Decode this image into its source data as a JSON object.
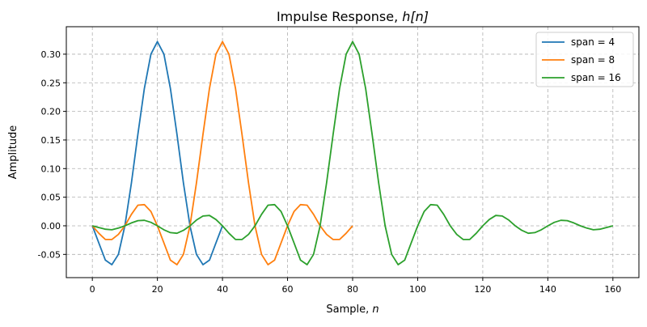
{
  "chart_data": {
    "type": "line",
    "title": "Impulse Response, h[n]",
    "title_plain": "Impulse Response, ",
    "title_math": "h[n]",
    "xlabel_plain": "Sample, ",
    "xlabel_math": "n",
    "ylabel": "Amplitude",
    "xlim": [
      -8,
      168
    ],
    "ylim": [
      -0.0906,
      0.348
    ],
    "xticks": [
      0,
      20,
      40,
      60,
      80,
      100,
      120,
      140,
      160
    ],
    "yticks": [
      -0.05,
      0.0,
      0.05,
      0.1,
      0.15,
      0.2,
      0.25,
      0.3
    ],
    "grid": true,
    "legend_position": "top-right",
    "x_start": 0,
    "x_step": 2,
    "series": [
      {
        "name": "span = 4",
        "color": "#1f77b4",
        "y": [
          0,
          -0.03,
          -0.06,
          -0.068,
          -0.05,
          0,
          0.075,
          0.16,
          0.24,
          0.3,
          0.322,
          0.3,
          0.24,
          0.16,
          0.075,
          0,
          -0.05,
          -0.068,
          -0.06,
          -0.03,
          0
        ]
      },
      {
        "name": "span = 8",
        "color": "#ff7f0e",
        "y": [
          0,
          -0.013,
          -0.024,
          -0.024,
          -0.015,
          0,
          0.02,
          0.036,
          0.037,
          0.025,
          0,
          -0.03,
          -0.06,
          -0.068,
          -0.05,
          0,
          0.075,
          0.16,
          0.24,
          0.3,
          0.322,
          0.3,
          0.24,
          0.16,
          0.075,
          0,
          -0.05,
          -0.068,
          -0.06,
          -0.03,
          0,
          0.025,
          0.037,
          0.036,
          0.02,
          0,
          -0.015,
          -0.024,
          -0.024,
          -0.013,
          0
        ]
      },
      {
        "name": "span = 16",
        "color": "#2ca02c",
        "y": [
          0,
          -0.003,
          -0.006,
          -0.007,
          -0.004,
          0,
          0.005,
          0.009,
          0.0095,
          0.006,
          0,
          -0.007,
          -0.012,
          -0.013,
          -0.008,
          0,
          0.01,
          0.017,
          0.018,
          0.011,
          0,
          -0.013,
          -0.024,
          -0.024,
          -0.015,
          0,
          0.02,
          0.036,
          0.037,
          0.025,
          0,
          -0.03,
          -0.06,
          -0.068,
          -0.05,
          0,
          0.075,
          0.16,
          0.24,
          0.3,
          0.322,
          0.3,
          0.24,
          0.16,
          0.075,
          0,
          -0.05,
          -0.068,
          -0.06,
          -0.03,
          0,
          0.025,
          0.037,
          0.036,
          0.02,
          0,
          -0.015,
          -0.024,
          -0.024,
          -0.013,
          0,
          0.011,
          0.018,
          0.017,
          0.01,
          0,
          -0.008,
          -0.013,
          -0.012,
          -0.007,
          0,
          0.006,
          0.0095,
          0.009,
          0.005,
          0,
          -0.004,
          -0.007,
          -0.006,
          -0.003,
          0
        ]
      }
    ]
  }
}
